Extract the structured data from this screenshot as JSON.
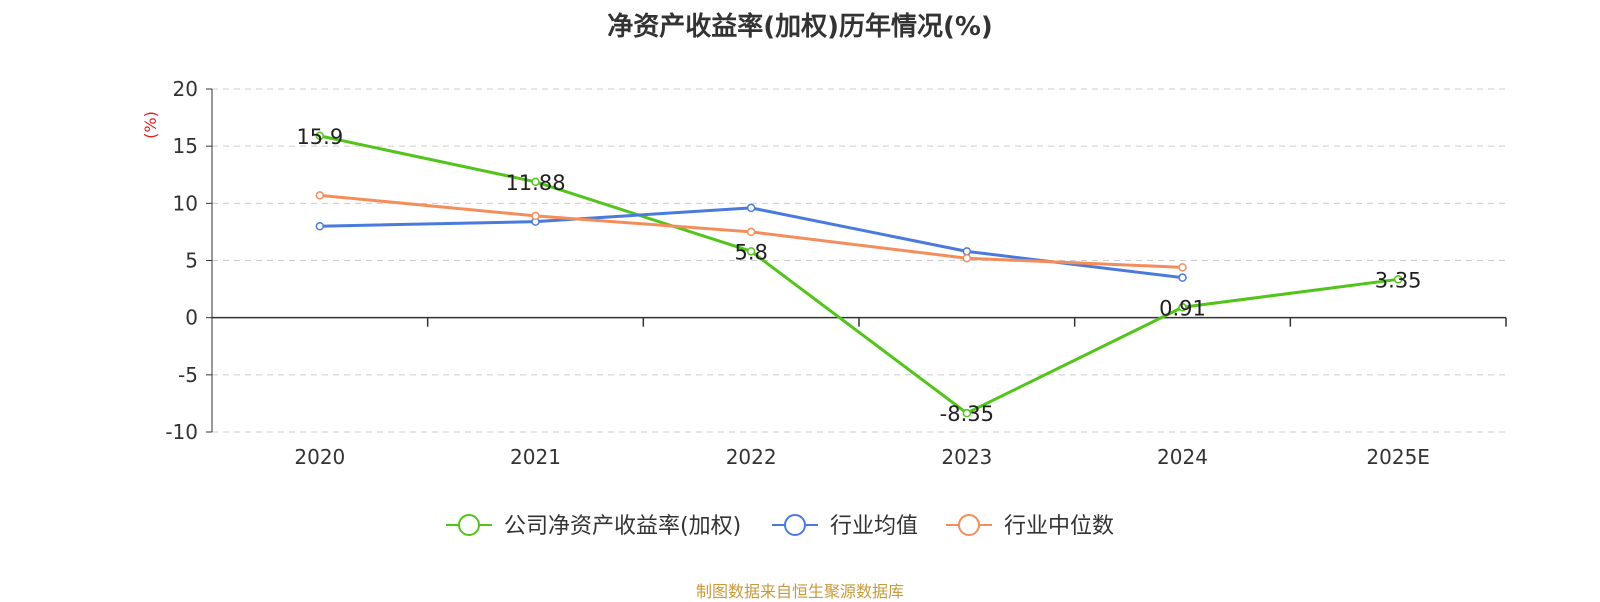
{
  "chart_data": {
    "type": "line",
    "title": "净资产收益率(加权)历年情况(%)",
    "ylabel": "(%)",
    "categories": [
      "2020",
      "2021",
      "2022",
      "2023",
      "2024",
      "2025E"
    ],
    "ylim": [
      -10,
      20
    ],
    "yticks": [
      20,
      15,
      10,
      5,
      0,
      -5,
      -10
    ],
    "grid": true,
    "legend_position": "bottom",
    "series": [
      {
        "name": "公司净资产收益率(加权)",
        "color": "#52c41a",
        "values": [
          15.9,
          11.88,
          5.8,
          -8.35,
          0.91,
          3.35
        ],
        "labels": [
          "15.9",
          "11.88",
          "5.8",
          "-8.35",
          "0.91",
          "3.35"
        ]
      },
      {
        "name": "行业均值",
        "color": "#4a7bdc",
        "values": [
          8.0,
          8.4,
          9.6,
          5.8,
          3.5,
          null
        ]
      },
      {
        "name": "行业中位数",
        "color": "#f58d5a",
        "values": [
          10.7,
          8.9,
          7.5,
          5.2,
          4.4,
          null
        ]
      }
    ]
  },
  "ylabel_color": "#e02020",
  "source": "制图数据来自恒生聚源数据库"
}
